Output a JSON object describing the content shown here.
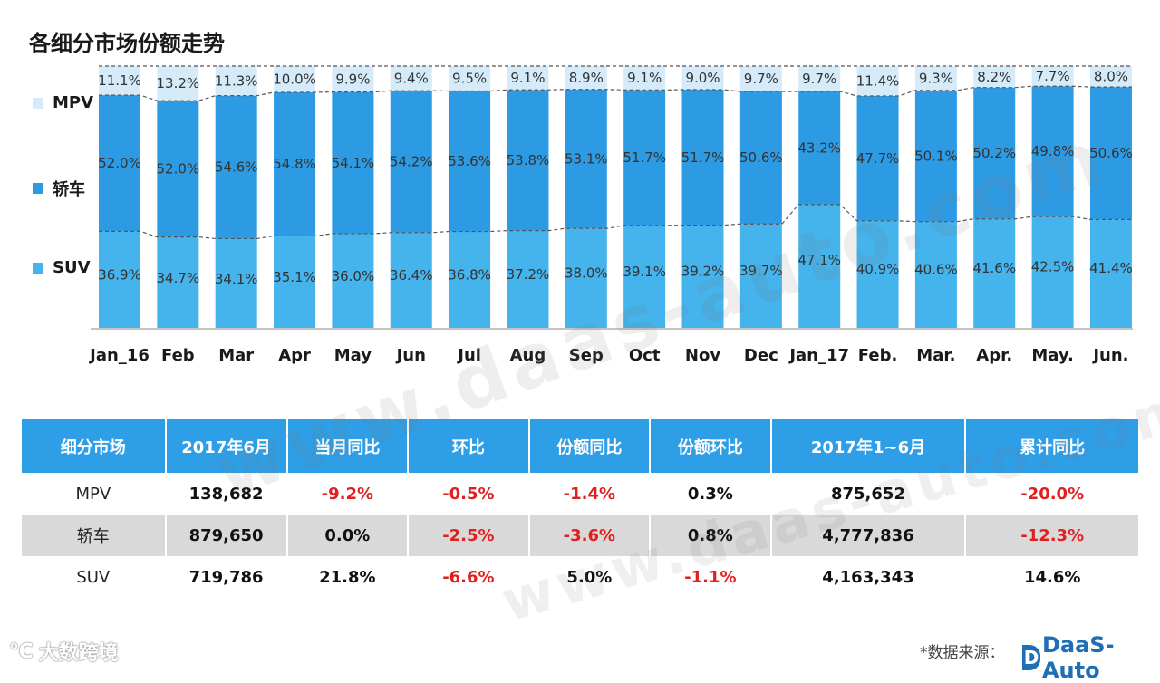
{
  "chart_data": {
    "type": "bar",
    "stacked": true,
    "normalized": true,
    "title": "各细分市场份额走势",
    "categories": [
      "Jan_16",
      "Feb",
      "Mar",
      "Apr",
      "May",
      "Jun",
      "Jul",
      "Aug",
      "Sep",
      "Oct",
      "Nov",
      "Dec",
      "Jan_17",
      "Feb.",
      "Mar.",
      "Apr.",
      "May.",
      "Jun."
    ],
    "series": [
      {
        "name": "SUV",
        "color": "#45b3ec",
        "values": [
          36.9,
          34.7,
          34.1,
          35.1,
          36.0,
          36.4,
          36.8,
          37.2,
          38.0,
          39.1,
          39.2,
          39.7,
          47.1,
          40.9,
          40.6,
          41.6,
          42.5,
          41.4
        ],
        "labels": [
          "36.9%",
          "34.7%",
          "34.1%",
          "35.1%",
          "36.0%",
          "36.4%",
          "36.8%",
          "37.2%",
          "38.0%",
          "39.1%",
          "39.2%",
          "39.7%",
          "47.1%",
          "40.9%",
          "40.6%",
          "41.6%",
          "42.5%",
          "41.4%"
        ]
      },
      {
        "name": "轿车",
        "color": "#2d9be4",
        "values": [
          52.0,
          52.0,
          54.6,
          54.8,
          54.1,
          54.2,
          53.6,
          53.8,
          53.1,
          51.7,
          51.7,
          50.6,
          43.2,
          47.7,
          50.1,
          50.2,
          49.8,
          50.6
        ],
        "labels": [
          "52.0%",
          "52.0%",
          "54.6%",
          "54.8%",
          "54.1%",
          "54.2%",
          "53.6%",
          "53.8%",
          "53.1%",
          "51.7%",
          "51.7%",
          "50.6%",
          "43.2%",
          "47.7%",
          "50.1%",
          "50.2%",
          "49.8%",
          "50.6%"
        ]
      },
      {
        "name": "MPV",
        "color": "#d6ebf9",
        "values": [
          11.1,
          13.2,
          11.3,
          10.0,
          9.9,
          9.4,
          9.5,
          9.1,
          8.9,
          9.1,
          9.0,
          9.7,
          9.7,
          11.4,
          9.3,
          8.2,
          7.7,
          8.0
        ],
        "labels": [
          "11.1%",
          "13.2%",
          "11.3%",
          "10.0%",
          "9.9%",
          "9.4%",
          "9.5%",
          "9.1%",
          "8.9%",
          "9.1%",
          "9.0%",
          "9.7%",
          "9.7%",
          "11.4%",
          "9.3%",
          "8.2%",
          "7.7%",
          "8.0%"
        ]
      }
    ],
    "legend": [
      "MPV",
      "轿车",
      "SUV"
    ],
    "legend_position": "left",
    "ylim": [
      0,
      100
    ]
  },
  "legend_colors": {
    "MPV": "#d6ebf9",
    "轿车": "#2d9be4",
    "SUV": "#45b3ec"
  },
  "table": {
    "headers": [
      "细分市场",
      "2017年6月",
      "当月同比",
      "环比",
      "份额同比",
      "份额环比",
      "2017年1~6月",
      "累计同比"
    ],
    "rows": [
      {
        "cells": [
          "MPV",
          "138,682",
          "-9.2%",
          "-0.5%",
          "-1.4%",
          "0.3%",
          "875,652",
          "-20.0%"
        ]
      },
      {
        "cells": [
          "轿车",
          "879,650",
          "0.0%",
          "-2.5%",
          "-3.6%",
          "0.8%",
          "4,777,836",
          "-12.3%"
        ]
      },
      {
        "cells": [
          "SUV",
          "719,786",
          "21.8%",
          "-6.6%",
          "5.0%",
          "-1.1%",
          "4,163,343",
          "14.6%"
        ]
      }
    ]
  },
  "watermark": "www.daas-auto.com",
  "footer": {
    "left_brand": "大数跨境",
    "source_label": "*数据来源：",
    "brand": "DaaS-Auto"
  }
}
